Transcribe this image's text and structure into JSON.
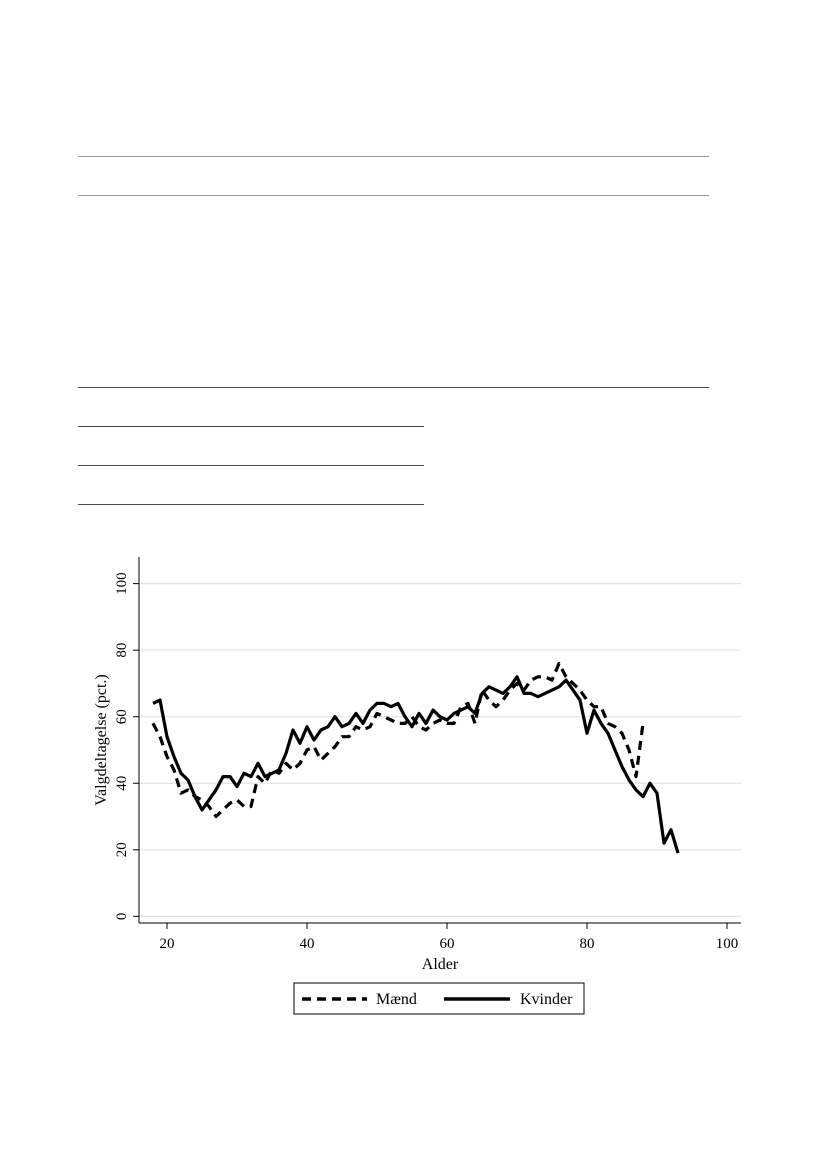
{
  "chart_data": {
    "type": "line",
    "title": "",
    "xlabel": "Alder",
    "ylabel": "Valgdeltagelse (pct.)",
    "xlim": [
      16,
      102
    ],
    "ylim": [
      -2,
      108
    ],
    "xticks": [
      20,
      40,
      60,
      80,
      100
    ],
    "yticks": [
      0,
      20,
      40,
      60,
      80,
      100
    ],
    "grid": true,
    "legend_position": "bottom",
    "series": [
      {
        "name": "Mænd",
        "style": "dashed",
        "color": "#000000",
        "x": [
          18,
          19,
          20,
          21,
          22,
          23,
          24,
          25,
          26,
          27,
          28,
          29,
          30,
          31,
          32,
          33,
          34,
          35,
          36,
          37,
          38,
          39,
          40,
          41,
          42,
          43,
          44,
          45,
          46,
          47,
          48,
          49,
          50,
          51,
          52,
          53,
          54,
          55,
          56,
          57,
          58,
          59,
          60,
          61,
          62,
          63,
          64,
          65,
          66,
          67,
          68,
          69,
          70,
          71,
          72,
          73,
          74,
          75,
          76,
          77,
          78,
          79,
          80,
          81,
          82,
          83,
          84,
          85,
          86,
          87,
          88,
          89
        ],
        "y": [
          58,
          54,
          48,
          44,
          37,
          38,
          36,
          35,
          33,
          30,
          32,
          34,
          35,
          33,
          33,
          42,
          40,
          44,
          43,
          46,
          44,
          46,
          50,
          51,
          47,
          49,
          51,
          54,
          54,
          57,
          56,
          57,
          61,
          60,
          59,
          58,
          58,
          60,
          57,
          56,
          58,
          59,
          58,
          58,
          63,
          64,
          58,
          68,
          65,
          63,
          65,
          68,
          70,
          68,
          71,
          72,
          72,
          71,
          76,
          72,
          70,
          68,
          65,
          63,
          63,
          58,
          57,
          55,
          50,
          42,
          58,
          0
        ],
        "y_valid_count": 71
      },
      {
        "name": "Kvinder",
        "style": "solid",
        "color": "#000000",
        "x": [
          18,
          19,
          20,
          21,
          22,
          23,
          24,
          25,
          26,
          27,
          28,
          29,
          30,
          31,
          32,
          33,
          34,
          35,
          36,
          37,
          38,
          39,
          40,
          41,
          42,
          43,
          44,
          45,
          46,
          47,
          48,
          49,
          50,
          51,
          52,
          53,
          54,
          55,
          56,
          57,
          58,
          59,
          60,
          61,
          62,
          63,
          64,
          65,
          66,
          67,
          68,
          69,
          70,
          71,
          72,
          73,
          74,
          75,
          76,
          77,
          78,
          79,
          80,
          81,
          82,
          83,
          84,
          85,
          86,
          87,
          88,
          89,
          90,
          91,
          92,
          93
        ],
        "y": [
          64,
          65,
          54,
          48,
          43,
          41,
          36,
          32,
          35,
          38,
          42,
          42,
          39,
          43,
          42,
          46,
          42,
          43,
          44,
          49,
          56,
          52,
          57,
          53,
          56,
          57,
          60,
          57,
          58,
          61,
          58,
          62,
          64,
          64,
          63,
          64,
          60,
          57,
          61,
          58,
          62,
          60,
          59,
          61,
          62,
          63,
          61,
          67,
          69,
          68,
          67,
          69,
          72,
          67,
          67,
          66,
          67,
          68,
          69,
          71,
          68,
          65,
          55,
          62,
          58,
          55,
          50,
          45,
          41,
          38,
          36,
          40,
          37,
          22,
          26,
          19
        ]
      }
    ]
  },
  "legend": {
    "items": [
      "Mænd",
      "Kvinder"
    ]
  }
}
